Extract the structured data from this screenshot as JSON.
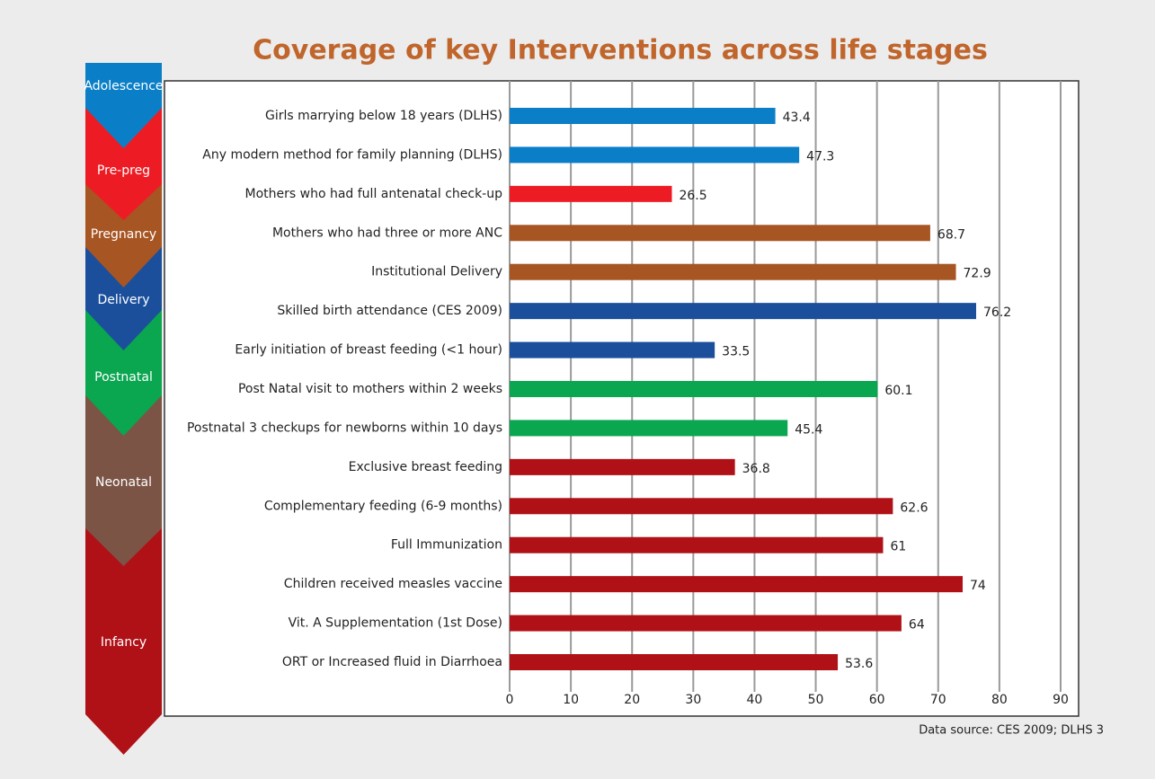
{
  "chart_data": {
    "type": "bar",
    "orientation": "horizontal",
    "title": "Coverage of key Interventions across life stages",
    "categories": [
      "Girls marrying below 18 years (DLHS)",
      "Any modern method for family planning (DLHS)",
      "Mothers who had full antenatal check-up",
      "Mothers who had three or more ANC",
      "Institutional Delivery",
      "Skilled birth attendance (CES 2009)",
      "Early initiation of breast feeding (<1 hour)",
      "Post Natal visit to mothers within 2 weeks",
      "Postnatal 3 checkups for newborns within 10 days",
      "Exclusive breast feeding",
      "Complementary feeding (6-9 months)",
      "Full Immunization",
      "Children received measles vaccine",
      "Vit. A Supplementation (1st Dose)",
      "ORT or Increased fluid in Diarrhoea"
    ],
    "values": [
      43.4,
      47.3,
      26.5,
      68.7,
      72.9,
      76.2,
      33.5,
      60.1,
      45.4,
      36.8,
      62.6,
      61,
      74,
      64,
      53.6
    ],
    "colors": [
      "#0a7fc7",
      "#0a7fc7",
      "#ed1c24",
      "#a65523",
      "#a65523",
      "#1b4f9c",
      "#1b4f9c",
      "#0aa650",
      "#0aa650",
      "#b01117",
      "#b01117",
      "#b01117",
      "#b01117",
      "#b01117",
      "#b01117"
    ],
    "xlim": [
      0,
      90
    ],
    "xticks": [
      0,
      10,
      20,
      30,
      40,
      50,
      60,
      70,
      80,
      90
    ],
    "grid": true,
    "source": "Data source: CES 2009; DLHS 3",
    "stages": [
      {
        "label": "Adolescence",
        "color": "#0a7fc7"
      },
      {
        "label": "Pre-preg",
        "color": "#ed1c24"
      },
      {
        "label": "Pregnancy",
        "color": "#a65523"
      },
      {
        "label": "Delivery",
        "color": "#1b4f9c"
      },
      {
        "label": "Postnatal",
        "color": "#0aa650"
      },
      {
        "label": "Neonatal",
        "color": "#7b5446"
      },
      {
        "label": "Infancy",
        "color": "#b01117"
      }
    ]
  }
}
